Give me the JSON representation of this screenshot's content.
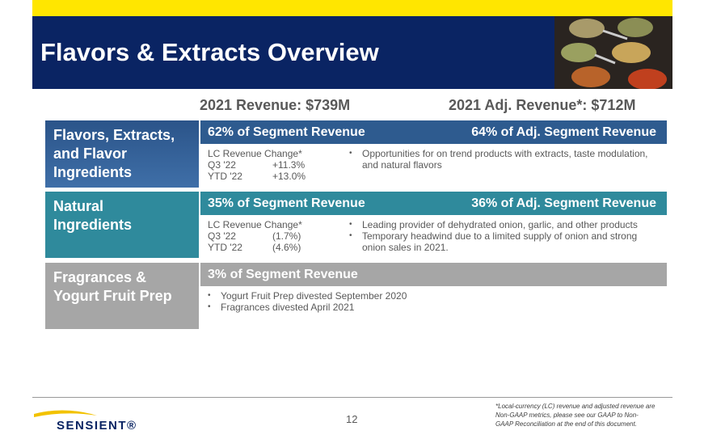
{
  "header": {
    "title": "Flavors & Extracts Overview"
  },
  "revenue": {
    "total": "2021 Revenue: $739M",
    "adjusted": "2021 Adj. Revenue*: $712M"
  },
  "segments": [
    {
      "name_lines": [
        "Flavors, Extracts,",
        "and Flavor",
        "Ingredients"
      ],
      "share": "62% of Segment Revenue",
      "adj_share": "64% of Adj. Segment Revenue",
      "lc_label": "LC Revenue Change*",
      "lc_rows": [
        [
          "Q3 '22",
          "+11.3%"
        ],
        [
          "YTD '22",
          "+13.0%"
        ]
      ],
      "bullets": [
        "Opportunities for on trend products with extracts, taste modulation, and natural flavors"
      ]
    },
    {
      "name_lines": [
        "Natural",
        "Ingredients"
      ],
      "share": "35% of Segment Revenue",
      "adj_share": "36% of Adj. Segment Revenue",
      "lc_label": "LC Revenue Change*",
      "lc_rows": [
        [
          "Q3 '22",
          "(1.7%)"
        ],
        [
          "YTD '22",
          "(4.6%)"
        ]
      ],
      "bullets": [
        "Leading provider of dehydrated onion, garlic, and other products",
        "Temporary headwind due to a limited supply of onion and strong onion sales in 2021."
      ]
    },
    {
      "name_lines": [
        "Fragrances &",
        "Yogurt Fruit Prep"
      ],
      "share": "3% of Segment Revenue",
      "bullets": [
        "Yogurt Fruit Prep divested September 2020",
        "Fragrances divested April 2021"
      ]
    }
  ],
  "footer": {
    "page": "12",
    "note_lines": [
      "*Local-currency (LC) revenue and adjusted revenue are",
      "Non-GAAP metrics, please see our GAAP to Non-",
      "GAAP Reconciliation at the end of this document."
    ],
    "logo": "SENSIENT®"
  }
}
